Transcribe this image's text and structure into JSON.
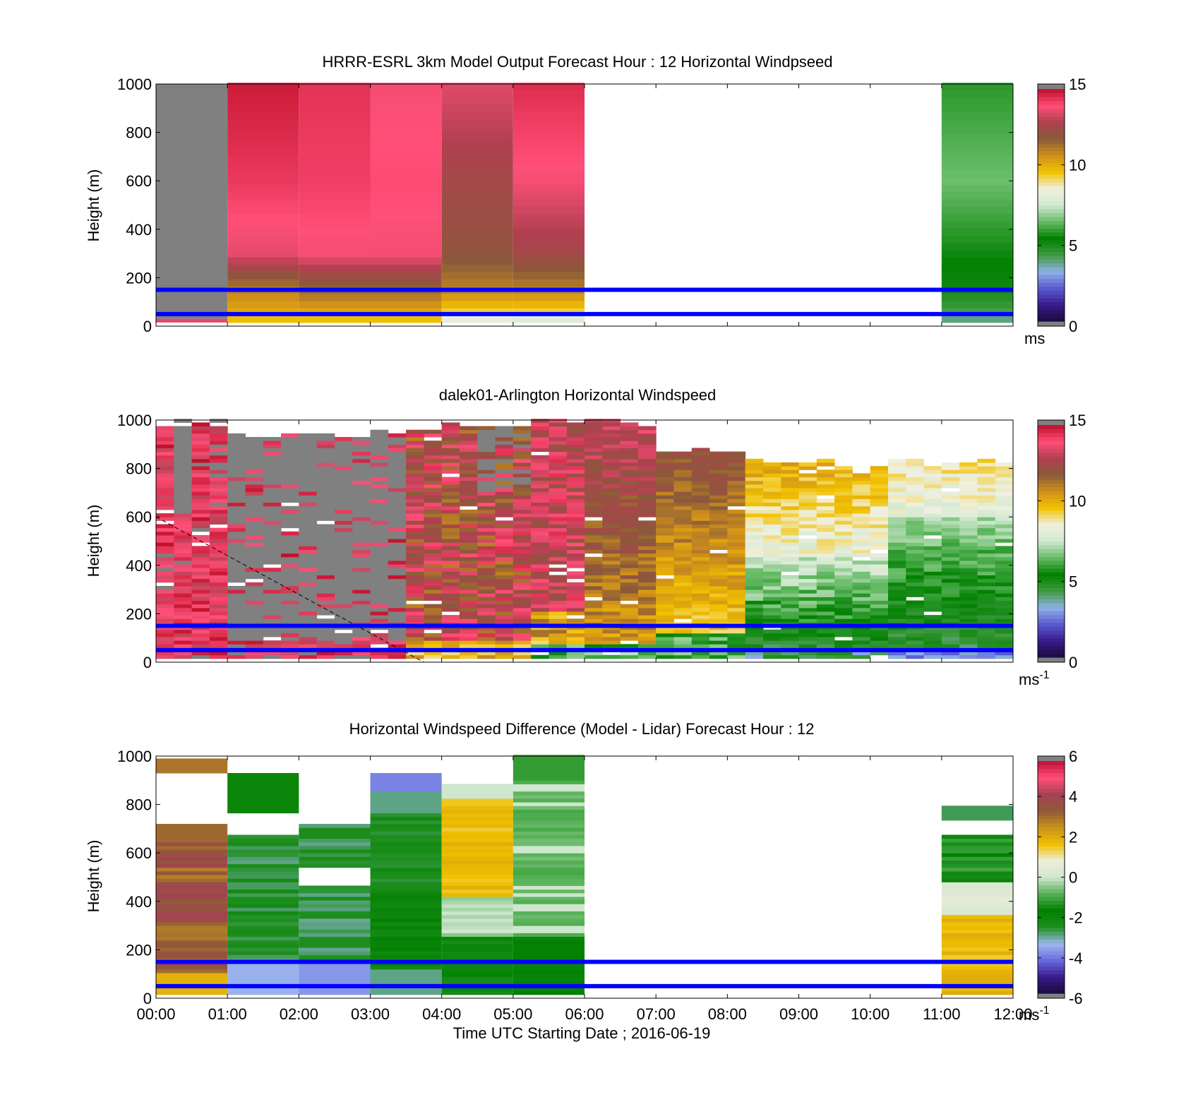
{
  "figure": {
    "background": "#ffffff"
  },
  "colors": {
    "wind_scale": [
      "#1a0a3d",
      "#3a1a8c",
      "#5a5ad0",
      "#8fb0e6",
      "#3f9a3f",
      "#008000",
      "#66bb66",
      "#d0e8d0",
      "#f0f0e0",
      "#f2c200",
      "#d0901a",
      "#8a5a3a",
      "#b04050",
      "#ff4f78",
      "#c0102a"
    ],
    "diff_scale": [
      "#1a0a3d",
      "#3a1a8c",
      "#6a6ae0",
      "#9db8ee",
      "#1f8f1f",
      "#008000",
      "#55b055",
      "#cfe6cf",
      "#eeeedd",
      "#f0c000",
      "#c8921a",
      "#8f5a3a",
      "#a64055",
      "#ff4f78",
      "#c01038"
    ],
    "gray": "#808080",
    "overlay_line": "#0000ff"
  },
  "panels": [
    {
      "id": "model",
      "title": "HRRR-ESRL 3km Model Output   Forecast Hour : 12 Horizontal Windpseed",
      "ylabel": "Height (m)",
      "colorbar_unit": "ms",
      "colorbar_ticks": [
        "0",
        "5",
        "10",
        "15"
      ]
    },
    {
      "id": "lidar",
      "title": "dalek01-Arlington  Horizontal Windspeed",
      "ylabel": "Height (m)",
      "colorbar_unit": "ms",
      "colorbar_unit_sup": "-1",
      "colorbar_ticks": [
        "0",
        "5",
        "10",
        "15"
      ]
    },
    {
      "id": "diff",
      "title": "Horizontal Windspeed Difference (Model - Lidar) Forecast Hour : 12",
      "ylabel": "Height (m)",
      "colorbar_unit": "ms",
      "colorbar_unit_sup": "-1",
      "colorbar_ticks": [
        "-6",
        "-4",
        "-2",
        "0",
        "2",
        "4",
        "6"
      ]
    }
  ],
  "xlabel": "Time UTC  Starting Date ; 2016-06-19",
  "chart_data": [
    {
      "type": "heatmap",
      "title": "HRRR-ESRL 3km Model Output   Forecast Hour : 12 Horizontal Windpseed",
      "ylabel": "Height (m)",
      "xlim": [
        0,
        12
      ],
      "ylim": [
        0,
        1000
      ],
      "x_ticks": [
        "00:00",
        "01:00",
        "02:00",
        "03:00",
        "04:00",
        "05:00",
        "06:00",
        "07:00",
        "08:00",
        "09:00",
        "10:00",
        "11:00",
        "12:00"
      ],
      "y_ticks": [
        0,
        200,
        400,
        600,
        800,
        1000
      ],
      "clim": [
        0,
        15
      ],
      "columns": [
        {
          "x": [
            0,
            1
          ],
          "profile": [
            [
              "below",
              14
            ],
            [
              "top",
              14
            ]
          ],
          "missing_above": 30
        },
        {
          "x": [
            1,
            2
          ],
          "profile": [
            [
              0,
              9
            ],
            [
              40,
              10
            ],
            [
              150,
              11
            ],
            [
              300,
              13.6
            ],
            [
              600,
              14.3
            ],
            [
              1000,
              14.8
            ]
          ]
        },
        {
          "x": [
            2,
            3
          ],
          "profile": [
            [
              0,
              9
            ],
            [
              40,
              10
            ],
            [
              150,
              11.5
            ],
            [
              300,
              13.8
            ],
            [
              600,
              14.2
            ],
            [
              1000,
              14.4
            ]
          ]
        },
        {
          "x": [
            3,
            4
          ],
          "profile": [
            [
              0,
              9
            ],
            [
              40,
              10
            ],
            [
              150,
              11.5
            ],
            [
              300,
              13.8
            ],
            [
              600,
              14.0
            ],
            [
              1000,
              13.8
            ]
          ]
        },
        {
          "x": [
            4,
            5
          ],
          "profile": [
            [
              0,
              6
            ],
            [
              40,
              9
            ],
            [
              150,
              11
            ],
            [
              300,
              12
            ],
            [
              600,
              12.5
            ],
            [
              1000,
              13.5
            ]
          ]
        },
        {
          "x": [
            5,
            6
          ],
          "profile": [
            [
              0,
              5
            ],
            [
              40,
              9
            ],
            [
              150,
              11
            ],
            [
              300,
              12.5
            ],
            [
              600,
              13.8
            ],
            [
              1000,
              14.5
            ]
          ]
        },
        {
          "x": [
            11,
            12
          ],
          "profile": [
            [
              0,
              3.5
            ],
            [
              40,
              4
            ],
            [
              150,
              5
            ],
            [
              300,
              5.5
            ],
            [
              600,
              6.5
            ],
            [
              1000,
              5.8
            ]
          ]
        }
      ],
      "overlay_lines": [
        50,
        150
      ]
    },
    {
      "type": "heatmap",
      "title": "dalek01-Arlington  Horizontal Windspeed",
      "ylabel": "Height (m)",
      "xlim": [
        0,
        12
      ],
      "ylim": [
        0,
        1000
      ],
      "x_ticks": [
        "00:00",
        "01:00",
        "02:00",
        "03:00",
        "04:00",
        "05:00",
        "06:00",
        "07:00",
        "08:00",
        "09:00",
        "10:00",
        "11:00",
        "12:00"
      ],
      "y_ticks": [
        0,
        200,
        400,
        600,
        800,
        1000
      ],
      "clim": [
        0,
        15
      ],
      "overlay_lines": [
        50,
        150
      ],
      "dashed_line": [
        [
          0,
          600
        ],
        [
          3.75,
          0
        ]
      ]
    },
    {
      "type": "heatmap",
      "title": "Horizontal Windspeed Difference (Model - Lidar) Forecast Hour : 12",
      "ylabel": "Height (m)",
      "xlabel": "Time UTC  Starting Date ; 2016-06-19",
      "xlim": [
        0,
        12
      ],
      "ylim": [
        0,
        1000
      ],
      "x_ticks": [
        "00:00",
        "01:00",
        "02:00",
        "03:00",
        "04:00",
        "05:00",
        "06:00",
        "07:00",
        "08:00",
        "09:00",
        "10:00",
        "11:00",
        "12:00"
      ],
      "y_ticks": [
        0,
        200,
        400,
        600,
        800,
        1000
      ],
      "clim": [
        -6,
        6
      ],
      "overlay_lines": [
        50,
        150
      ]
    }
  ]
}
